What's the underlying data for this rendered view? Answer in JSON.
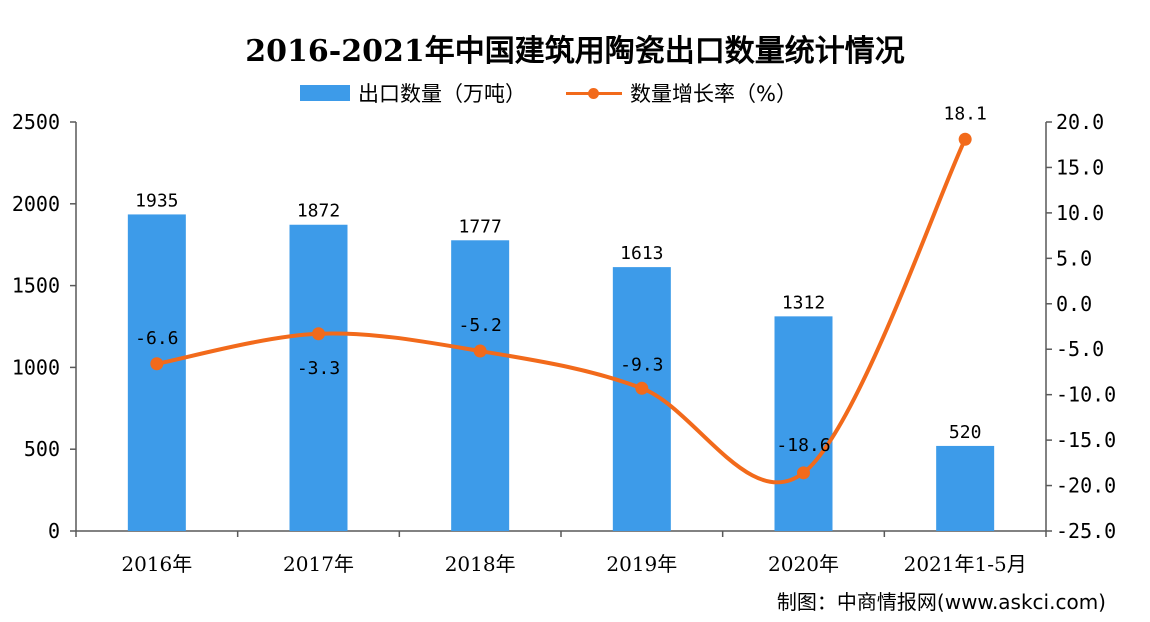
{
  "title": "2016-2021年中国建筑用陶瓷出口数量统计情况",
  "credit": "制图：中商情报网(www.askci.com)",
  "colors": {
    "bar": "#3d9be9",
    "line": "#f26a1b",
    "axis": "#595959"
  },
  "chart_data": {
    "type": "bar",
    "categories": [
      "2016年",
      "2017年",
      "2018年",
      "2019年",
      "2020年",
      "2021年1-5月"
    ],
    "series": [
      {
        "name": "出口数量（万吨）",
        "type": "bar",
        "axis": "left",
        "values": [
          1935,
          1872,
          1777,
          1613,
          1312,
          520
        ]
      },
      {
        "name": "数量增长率（%）",
        "type": "line",
        "axis": "right",
        "values": [
          -6.6,
          -3.3,
          -5.2,
          -9.3,
          -18.6,
          18.1
        ]
      }
    ],
    "y_left": {
      "min": 0,
      "max": 2500,
      "ticks": [
        "0",
        "500",
        "1000",
        "1500",
        "2000",
        "2500"
      ]
    },
    "y_right": {
      "min": -25,
      "max": 20,
      "ticks": [
        "-25.0",
        "-20.0",
        "-15.0",
        "-10.0",
        "-5.0",
        "0.0",
        "5.0",
        "10.0",
        "15.0",
        "20.0"
      ]
    },
    "bar_labels": [
      "1935",
      "1872",
      "1777",
      "1613",
      "1312",
      "520"
    ],
    "line_labels": [
      "-6.6",
      "-3.3",
      "-5.2",
      "-9.3",
      "-18.6",
      "18.1"
    ],
    "legend": "top",
    "grid": false
  }
}
